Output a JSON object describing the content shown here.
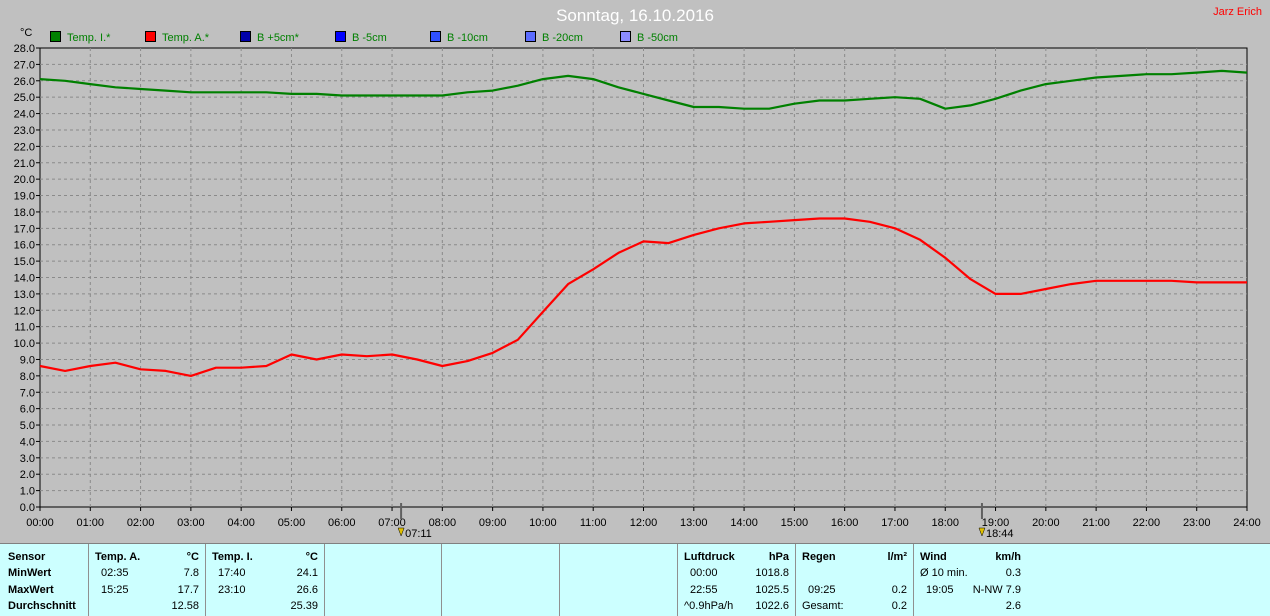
{
  "title": "Sonntag, 16.10.2016",
  "author": "Jarz Erich",
  "legend": [
    {
      "label": "Temp. I.*",
      "color": "#008000"
    },
    {
      "label": "Temp. A.*",
      "color": "#ff0000"
    },
    {
      "label": "B +5cm*",
      "color": "#0000aa"
    },
    {
      "label": "B -5cm",
      "color": "#0000ff"
    },
    {
      "label": "B -10cm",
      "color": "#3050ff"
    },
    {
      "label": "B -20cm",
      "color": "#5c6cff"
    },
    {
      "label": "B -50cm",
      "color": "#8c8cff"
    }
  ],
  "chart_data": {
    "type": "line",
    "y_unit": "°C",
    "ylim": [
      0,
      28
    ],
    "y_ticks": [
      "0.0",
      "1.0",
      "2.0",
      "3.0",
      "4.0",
      "5.0",
      "6.0",
      "7.0",
      "8.0",
      "9.0",
      "10.0",
      "11.0",
      "12.0",
      "13.0",
      "14.0",
      "15.0",
      "16.0",
      "17.0",
      "18.0",
      "19.0",
      "20.0",
      "21.0",
      "22.0",
      "23.0",
      "24.0",
      "25.0",
      "26.0",
      "27.0",
      "28.0"
    ],
    "x_ticks": [
      "00:00",
      "01:00",
      "02:00",
      "03:00",
      "04:00",
      "05:00",
      "06:00",
      "07:00",
      "08:00",
      "09:00",
      "10:00",
      "11:00",
      "12:00",
      "13:00",
      "14:00",
      "15:00",
      "16:00",
      "17:00",
      "18:00",
      "19:00",
      "20:00",
      "21:00",
      "22:00",
      "23:00",
      "24:00"
    ],
    "xlim": [
      0,
      24
    ],
    "grid": true,
    "markers": [
      {
        "label": "07:11",
        "x": 7.18
      },
      {
        "label": "18:44",
        "x": 18.73
      }
    ],
    "series": [
      {
        "name": "Temp. I.*",
        "color": "#008000",
        "x": [
          0,
          0.5,
          1,
          1.5,
          2,
          2.5,
          3,
          3.5,
          4,
          4.5,
          5,
          5.5,
          6,
          6.5,
          7,
          7.5,
          8,
          8.5,
          9,
          9.5,
          10,
          10.5,
          11,
          11.5,
          12,
          12.5,
          13,
          13.5,
          14,
          14.5,
          15,
          15.5,
          16,
          16.5,
          17,
          17.5,
          18,
          18.5,
          19,
          19.5,
          20,
          20.5,
          21,
          21.5,
          22,
          22.5,
          23,
          23.5,
          24
        ],
        "y": [
          26.1,
          26.0,
          25.8,
          25.6,
          25.5,
          25.4,
          25.3,
          25.3,
          25.3,
          25.3,
          25.2,
          25.2,
          25.1,
          25.1,
          25.1,
          25.1,
          25.1,
          25.3,
          25.4,
          25.7,
          26.1,
          26.3,
          26.1,
          25.6,
          25.2,
          24.8,
          24.4,
          24.4,
          24.3,
          24.3,
          24.6,
          24.8,
          24.8,
          24.9,
          25.0,
          24.9,
          24.3,
          24.5,
          24.9,
          25.4,
          25.8,
          26.0,
          26.2,
          26.3,
          26.4,
          26.4,
          26.5,
          26.6,
          26.5
        ]
      },
      {
        "name": "Temp. A.*",
        "color": "#ff0000",
        "x": [
          0,
          0.5,
          1,
          1.5,
          2,
          2.5,
          3,
          3.5,
          4,
          4.5,
          5,
          5.5,
          6,
          6.5,
          7,
          7.5,
          8,
          8.5,
          9,
          9.5,
          10,
          10.5,
          11,
          11.5,
          12,
          12.5,
          13,
          13.5,
          14,
          14.5,
          15,
          15.5,
          16,
          16.5,
          17,
          17.5,
          18,
          18.5,
          19,
          19.5,
          20,
          20.5,
          21,
          21.5,
          22,
          22.5,
          23,
          23.5,
          24
        ],
        "y": [
          8.6,
          8.3,
          8.6,
          8.8,
          8.4,
          8.3,
          8.0,
          8.5,
          8.5,
          8.6,
          9.3,
          9.0,
          9.3,
          9.2,
          9.3,
          9.0,
          8.6,
          8.9,
          9.4,
          10.2,
          11.9,
          13.6,
          14.5,
          15.5,
          16.2,
          16.1,
          16.6,
          17.0,
          17.3,
          17.4,
          17.5,
          17.6,
          17.6,
          17.4,
          17.0,
          16.3,
          15.2,
          13.9,
          13.0,
          13.0,
          13.3,
          13.6,
          13.8,
          13.8,
          13.8,
          13.8,
          13.7,
          13.7,
          13.7
        ]
      }
    ]
  },
  "table": {
    "sensor": {
      "header": "Sensor",
      "rows": [
        "MinWert",
        "MaxWert",
        "Durchschnitt"
      ]
    },
    "temp_a": {
      "header": "Temp. A.",
      "unit": "°C",
      "min_time": "02:35",
      "min_val": "7.8",
      "max_time": "15:25",
      "max_val": "17.7",
      "avg": "12.58"
    },
    "temp_i": {
      "header": "Temp. I.",
      "unit": "°C",
      "min_time": "17:40",
      "min_val": "24.1",
      "max_time": "23:10",
      "max_val": "26.6",
      "avg": "25.39"
    },
    "luftdruck": {
      "header": "Luftdruck",
      "unit": "hPa",
      "r1_time": "00:00",
      "r1_val": "1018.8",
      "r2_time": "22:55",
      "r2_val": "1025.5",
      "r3_label": "^0.9hPa/h",
      "r3_val": "1022.6"
    },
    "regen": {
      "header": "Regen",
      "unit": "l/m²",
      "r2_time": "09:25",
      "r2_val": "0.2",
      "r3_label": "Gesamt:",
      "r3_val": "0.2"
    },
    "wind": {
      "header": "Wind",
      "unit": "km/h",
      "r1_label": "Ø 10 min.",
      "r1_val": "0.3",
      "r2_time": "19:05",
      "r2_val": "N-NW 7.9",
      "r3_val": "2.6"
    }
  }
}
